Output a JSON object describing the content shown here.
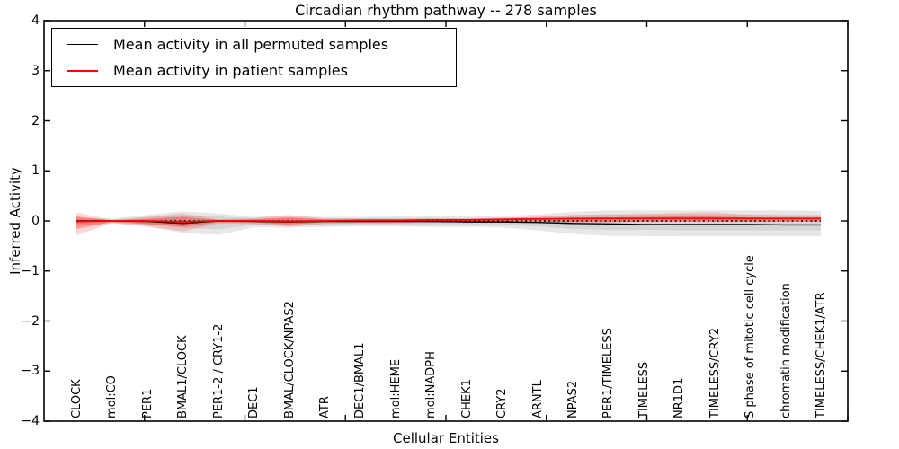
{
  "chart_data": {
    "type": "line",
    "title": "Circadian rhythm pathway -- 278 samples",
    "xlabel": "Cellular Entities",
    "ylabel": "Inferred Activity",
    "ylim": [
      -4,
      4
    ],
    "yticks": [
      "4",
      "3",
      "2",
      "1",
      "0",
      "−1",
      "−2",
      "−3",
      "−4"
    ],
    "grid": "off",
    "legend_position": "upper left",
    "categories": [
      "CLOCK",
      "mol:CO",
      "PER1",
      "BMAL1/CLOCK",
      "PER1-2 / CRY1-2",
      "DEC1",
      "BMAL/CLOCK/NPAS2",
      "ATR",
      "DEC1/BMAL1",
      "mol:HEME",
      "mol:NADPH",
      "CHEK1",
      "CRY2",
      "ARNTL",
      "NPAS2",
      "PER1/TIMELESS",
      "TIMELESS",
      "NR1D1",
      "TIMELESS/CRY2",
      "S phase of mitotic cell cycle",
      "chromatin modification",
      "TIMELESS/CHEK1/ATR"
    ],
    "series": [
      {
        "name": "Mean activity in all permuted samples",
        "color": "#000000",
        "values": [
          0,
          0,
          -0.01,
          -0.05,
          0,
          -0.01,
          -0.02,
          -0.01,
          -0.01,
          -0.01,
          -0.01,
          -0.02,
          -0.02,
          -0.03,
          -0.05,
          -0.06,
          -0.07,
          -0.07,
          -0.07,
          -0.07,
          -0.08,
          -0.08
        ]
      },
      {
        "name": "Mean activity in patient samples",
        "color": "#ff0000",
        "values": [
          -0.01,
          0,
          0,
          -0.02,
          0,
          0,
          -0.01,
          0,
          0.01,
          0.01,
          0.02,
          0.02,
          0.03,
          0.04,
          0.045,
          0.05,
          0.05,
          0.05,
          0.05,
          0.05,
          0.05,
          0.05
        ]
      }
    ],
    "bands": [
      {
        "name": "permuted-outer-band",
        "color": "#555555",
        "opacity": 0.14,
        "hi": [
          0.06,
          0.05,
          0.12,
          0.19,
          0.15,
          0.08,
          0.1,
          0.08,
          0.08,
          0.09,
          0.1,
          0.09,
          0.1,
          0.13,
          0.18,
          0.21,
          0.21,
          0.21,
          0.21,
          0.21,
          0.21,
          0.2
        ],
        "lo": [
          -0.1,
          -0.05,
          -0.12,
          -0.24,
          -0.28,
          -0.13,
          -0.13,
          -0.12,
          -0.11,
          -0.11,
          -0.12,
          -0.12,
          -0.13,
          -0.19,
          -0.26,
          -0.3,
          -0.3,
          -0.31,
          -0.31,
          -0.31,
          -0.31,
          -0.31
        ]
      },
      {
        "name": "permuted-inner-band",
        "color": "#555555",
        "opacity": 0.12,
        "hi": [
          0.04,
          0.03,
          0.07,
          0.11,
          0.09,
          0.05,
          0.06,
          0.05,
          0.05,
          0.05,
          0.06,
          0.05,
          0.06,
          0.08,
          0.11,
          0.13,
          0.13,
          0.13,
          0.13,
          0.13,
          0.13,
          0.12
        ],
        "lo": [
          -0.06,
          -0.03,
          -0.07,
          -0.14,
          -0.17,
          -0.08,
          -0.08,
          -0.07,
          -0.07,
          -0.07,
          -0.07,
          -0.07,
          -0.08,
          -0.11,
          -0.16,
          -0.18,
          -0.18,
          -0.19,
          -0.19,
          -0.19,
          -0.19,
          -0.19
        ]
      },
      {
        "name": "patient-outer-band",
        "color": "#ff0000",
        "opacity": 0.16,
        "hi": [
          0.17,
          0.02,
          0.08,
          0.15,
          0.03,
          0.06,
          0.12,
          0.05,
          0.05,
          0.05,
          0.05,
          0.05,
          0.06,
          0.08,
          0.12,
          0.13,
          0.14,
          0.16,
          0.17,
          0.12,
          0.11,
          0.11
        ],
        "lo": [
          -0.29,
          -0.04,
          -0.1,
          -0.21,
          -0.05,
          -0.06,
          -0.12,
          -0.06,
          -0.05,
          -0.05,
          -0.04,
          -0.03,
          -0.03,
          -0.02,
          -0.03,
          -0.03,
          -0.02,
          -0.02,
          -0.02,
          -0.02,
          -0.02,
          -0.02
        ]
      },
      {
        "name": "patient-inner-band",
        "color": "#ff0000",
        "opacity": 0.3,
        "hi": [
          0.09,
          0.01,
          0.04,
          0.08,
          0.02,
          0.03,
          0.07,
          0.03,
          0.03,
          0.03,
          0.03,
          0.03,
          0.03,
          0.04,
          0.07,
          0.07,
          0.08,
          0.09,
          0.09,
          0.07,
          0.06,
          0.06
        ],
        "lo": [
          -0.16,
          -0.02,
          -0.06,
          -0.12,
          -0.03,
          -0.03,
          -0.07,
          -0.03,
          -0.03,
          -0.03,
          -0.02,
          -0.02,
          -0.02,
          -0.01,
          -0.02,
          -0.02,
          -0.01,
          -0.01,
          -0.01,
          -0.01,
          -0.01,
          -0.01
        ]
      }
    ],
    "zero_line": {
      "style": "dotted",
      "color": "#000000"
    }
  }
}
